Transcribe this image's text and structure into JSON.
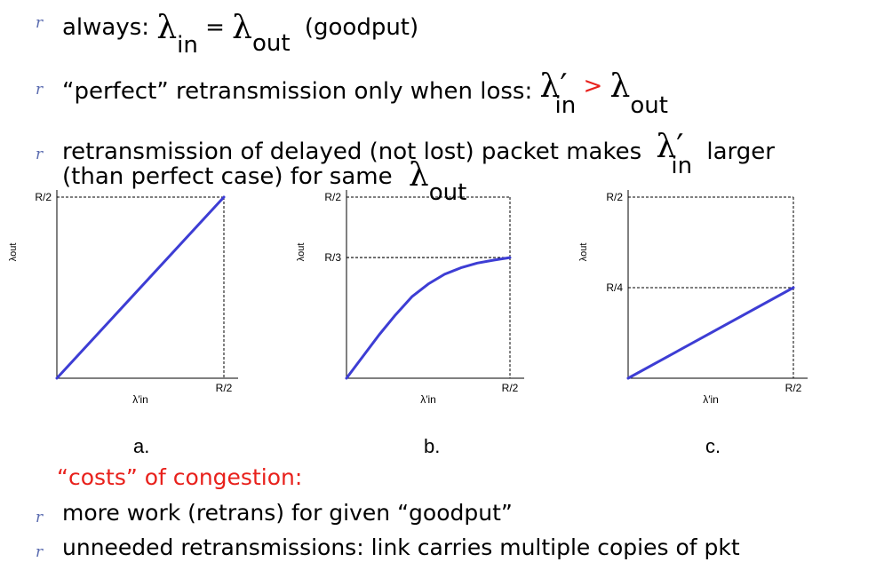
{
  "bullets": [
    {
      "always_prefix": "always:",
      "lambda_in": "λ",
      "sub_in": "in",
      "eq": "=",
      "lambda_out": "λ",
      "sub_out": "out",
      "goodput": "(goodput)"
    },
    {
      "text": "“perfect” retransmission only when loss:",
      "lambda_in_prime": "λ′",
      "sub_in": "in",
      "gt": ">",
      "lambda_out": "λ",
      "sub_out": "out"
    },
    {
      "line1": "retransmission of delayed (not lost) packet makes",
      "lambda_in_prime": "λ′",
      "sub_in": "in",
      "larger": "larger",
      "line2": "(than perfect case) for same",
      "lambda_out": "λ",
      "sub_out": "out"
    }
  ],
  "bullet_glyph": "r",
  "chart_data": [
    {
      "type": "line",
      "panel": "a.",
      "xlabel": "λ′in",
      "ylabel": "λout",
      "x_ticks": [
        "R/2"
      ],
      "y_ticks": [
        "R/2"
      ],
      "xlim": [
        0,
        0.5
      ],
      "ylim": [
        0,
        0.5
      ],
      "series": [
        {
          "x": [
            0,
            0.5
          ],
          "y": [
            0,
            0.5
          ]
        }
      ],
      "end_point": {
        "x": 0.5,
        "y": 0.5
      }
    },
    {
      "type": "line",
      "panel": "b.",
      "xlabel": "λ′in",
      "ylabel": "λout",
      "x_ticks": [
        "R/2"
      ],
      "y_ticks": [
        "R/2",
        "R/3"
      ],
      "xlim": [
        0,
        0.5
      ],
      "ylim": [
        0,
        0.5
      ],
      "series": [
        {
          "x": [
            0,
            0.05,
            0.1,
            0.15,
            0.2,
            0.25,
            0.3,
            0.35,
            0.4,
            0.45,
            0.5
          ],
          "y": [
            0,
            0.06,
            0.12,
            0.175,
            0.225,
            0.26,
            0.287,
            0.305,
            0.318,
            0.326,
            0.333
          ]
        }
      ],
      "end_point": {
        "x": 0.5,
        "y": 0.333
      }
    },
    {
      "type": "line",
      "panel": "c.",
      "xlabel": "λ′in",
      "ylabel": "λout",
      "x_ticks": [
        "R/2"
      ],
      "y_ticks": [
        "R/2",
        "R/4"
      ],
      "xlim": [
        0,
        0.5
      ],
      "ylim": [
        0,
        0.5
      ],
      "series": [
        {
          "x": [
            0,
            0.5
          ],
          "y": [
            0,
            0.25
          ]
        }
      ],
      "end_point": {
        "x": 0.5,
        "y": 0.25
      }
    }
  ],
  "costs": {
    "title": "“costs” of congestion:",
    "items": [
      "more work (retrans) for given “goodput”",
      "unneeded retransmissions: link carries multiple copies of pkt"
    ]
  },
  "colors": {
    "curve": "#3d3dd4",
    "accent_red": "#e8211c",
    "bullet": "#5b6cb0"
  }
}
